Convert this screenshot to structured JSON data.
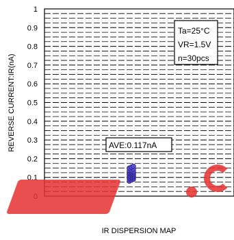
{
  "chart_data": {
    "type": "scatter",
    "title": "",
    "xlabel": "IR DISPERSION MAP",
    "ylabel": "REVERSE CURRENT:IR(nA)",
    "ylim": [
      0,
      1
    ],
    "yticks": [
      "0",
      "0.1",
      "0.2",
      "0.3",
      "0.4",
      "0.5",
      "0.6",
      "0.7",
      "0.8",
      "0.9",
      "1"
    ],
    "grid": true,
    "conditions": [
      "Ta=25°C",
      "VR=1.5V",
      "n=30pcs"
    ],
    "conditions_position": "top-right",
    "average_label": "AVE:0.117nA",
    "average": 0.117,
    "point_color": "#5a4fd0",
    "point_edge_color": "#2a1f8a",
    "values": [
      0.08,
      0.085,
      0.09,
      0.092,
      0.095,
      0.098,
      0.1,
      0.102,
      0.104,
      0.106,
      0.108,
      0.11,
      0.112,
      0.114,
      0.116,
      0.118,
      0.12,
      0.122,
      0.124,
      0.126,
      0.128,
      0.13,
      0.132,
      0.135,
      0.138,
      0.14,
      0.145,
      0.15,
      0.155,
      0.16
    ]
  },
  "watermark": {
    "color": "#e63030"
  }
}
